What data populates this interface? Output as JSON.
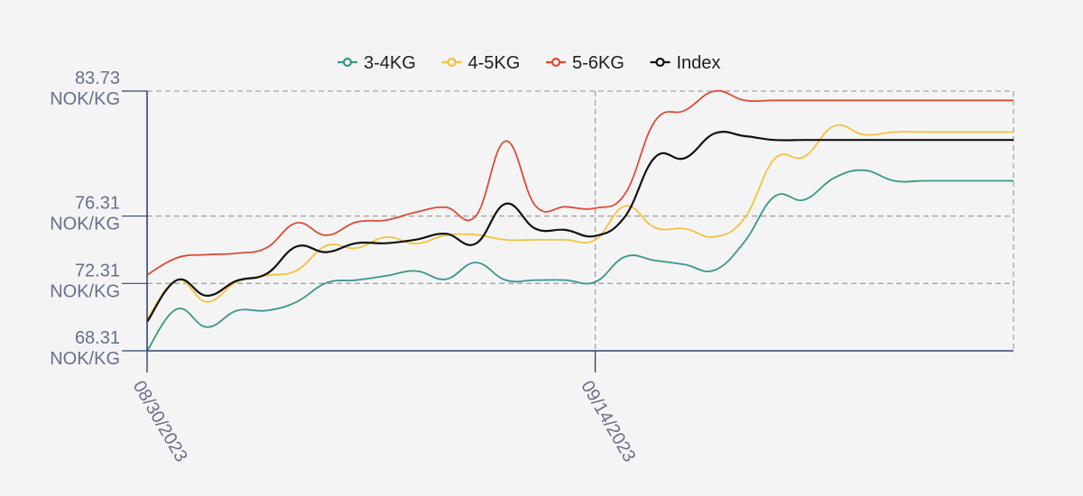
{
  "colors": {
    "background": "#f4f4f4",
    "axis": "#34446a",
    "grid": "#a4a4a4",
    "tick_label": "#66708a",
    "legend_text": "#1e1e1e"
  },
  "chart_data": {
    "type": "line",
    "title": "",
    "xlabel": "",
    "ylabel": "",
    "legend_position": "top-center",
    "grid": true,
    "x_domain": [
      "2023-08-30",
      "2023-09-28"
    ],
    "ylim": [
      68.31,
      83.73
    ],
    "y_ticks": [
      {
        "value": 68.31,
        "label": [
          "68.31",
          "NOK/KG"
        ]
      },
      {
        "value": 72.31,
        "label": [
          "72.31",
          "NOK/KG"
        ]
      },
      {
        "value": 76.31,
        "label": [
          "76.31",
          "NOK/KG"
        ]
      },
      {
        "value": 83.73,
        "label": [
          "83.73",
          "NOK/KG"
        ]
      }
    ],
    "x_ticks": [
      {
        "value": "2023-08-30",
        "label": "08/30/2023"
      },
      {
        "value": "2023-09-14",
        "label": "09/14/2023"
      }
    ],
    "x": [
      "2023-08-30",
      "2023-08-31",
      "2023-09-01",
      "2023-09-02",
      "2023-09-03",
      "2023-09-04",
      "2023-09-05",
      "2023-09-06",
      "2023-09-07",
      "2023-09-08",
      "2023-09-09",
      "2023-09-10",
      "2023-09-11",
      "2023-09-12",
      "2023-09-13",
      "2023-09-14",
      "2023-09-15",
      "2023-09-16",
      "2023-09-17",
      "2023-09-18",
      "2023-09-19",
      "2023-09-20",
      "2023-09-21",
      "2023-09-22",
      "2023-09-23",
      "2023-09-24",
      "2023-09-25",
      "2023-09-26",
      "2023-09-27",
      "2023-09-28"
    ],
    "series": [
      {
        "name": "3-4KG",
        "color": "#3b9686",
        "values": [
          68.31,
          70.79,
          69.72,
          70.69,
          70.7,
          71.21,
          72.34,
          72.51,
          72.76,
          73.05,
          72.56,
          73.55,
          72.51,
          72.51,
          72.51,
          72.4,
          73.9,
          73.67,
          73.43,
          73.1,
          74.8,
          77.47,
          77.28,
          78.58,
          79.03,
          78.4,
          78.4,
          78.4,
          78.4,
          78.4
        ]
      },
      {
        "name": "4-5KG",
        "color": "#f2c33c",
        "values": [
          70.18,
          72.51,
          71.21,
          72.4,
          72.78,
          73.07,
          74.55,
          74.41,
          75.06,
          74.67,
          75.17,
          75.2,
          74.9,
          74.9,
          74.9,
          74.9,
          76.91,
          75.62,
          75.56,
          75.08,
          76.19,
          79.7,
          79.84,
          81.66,
          81.14,
          81.3,
          81.3,
          81.3,
          81.3,
          81.3
        ]
      },
      {
        "name": "5-6KG",
        "color": "#de4b37",
        "values": [
          72.82,
          73.83,
          74.02,
          74.1,
          74.43,
          75.9,
          75.17,
          75.95,
          76.07,
          76.54,
          76.83,
          76.31,
          80.76,
          76.92,
          76.86,
          76.78,
          77.64,
          81.95,
          82.58,
          83.73,
          83.18,
          83.18,
          83.18,
          83.18,
          83.18,
          83.18,
          83.18,
          83.18,
          83.18,
          83.18
        ]
      },
      {
        "name": "Index",
        "color": "#111111",
        "values": [
          70.03,
          72.51,
          71.58,
          72.47,
          72.88,
          74.5,
          74.17,
          74.7,
          74.7,
          74.91,
          75.26,
          74.67,
          77.04,
          75.56,
          75.49,
          75.13,
          76.29,
          79.8,
          79.75,
          81.22,
          81.06,
          80.83,
          80.83,
          80.83,
          80.83,
          80.83,
          80.83,
          80.83,
          80.83,
          80.83
        ]
      }
    ]
  }
}
